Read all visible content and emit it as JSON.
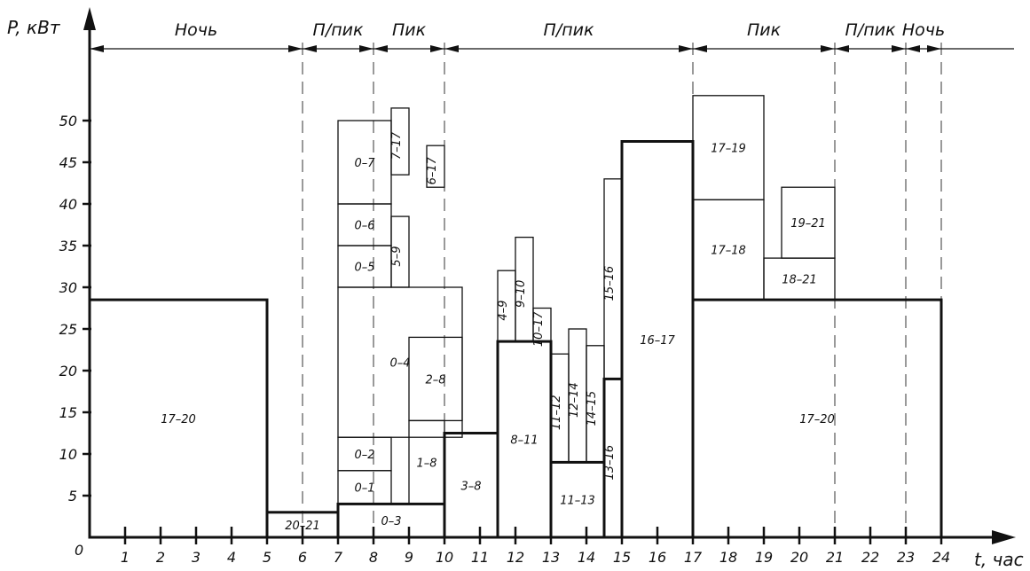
{
  "chart_data": {
    "type": "bar",
    "title": "",
    "xlabel": "t, час",
    "ylabel": "P, кВт",
    "origin_label": "0",
    "xlim": [
      0,
      24
    ],
    "ylim": [
      0,
      50
    ],
    "x_ticks": [
      "1",
      "2",
      "3",
      "4",
      "5",
      "6",
      "7",
      "8",
      "9",
      "10",
      "11",
      "12",
      "13",
      "14",
      "15",
      "16",
      "17",
      "18",
      "19",
      "20",
      "21",
      "22",
      "23",
      "24"
    ],
    "y_ticks": [
      "5",
      "10",
      "15",
      "20",
      "25",
      "30",
      "35",
      "40",
      "45",
      "50"
    ],
    "zones": [
      {
        "label": "Ночь",
        "from": 0,
        "to": 6
      },
      {
        "label": "П/пик",
        "from": 6,
        "to": 8
      },
      {
        "label": "Пик",
        "from": 8,
        "to": 10
      },
      {
        "label": "П/пик",
        "from": 10,
        "to": 17
      },
      {
        "label": "Пик",
        "from": 17,
        "to": 21
      },
      {
        "label": "П/пик",
        "from": 21,
        "to": 23
      },
      {
        "label": "Ночь",
        "from": 23,
        "to": 24
      }
    ],
    "zone_boundaries": [
      6,
      8,
      10,
      17,
      21,
      23,
      24
    ],
    "segments": [
      {
        "label": "17–20",
        "x0": 0,
        "x1": 5,
        "y0": 0,
        "y1": 28.5,
        "bold": true
      },
      {
        "label": "20–21",
        "x0": 5,
        "x1": 7,
        "y0": 0,
        "y1": 3,
        "bold": true
      },
      {
        "label": "0–3",
        "x0": 7,
        "x1": 10,
        "y0": 0,
        "y1": 4,
        "bold": true
      },
      {
        "label": "0–1",
        "x0": 7,
        "x1": 8.5,
        "y0": 4,
        "y1": 8,
        "bold": false
      },
      {
        "label": "0–2",
        "x0": 7,
        "x1": 8.5,
        "y0": 8,
        "y1": 12,
        "bold": false
      },
      {
        "label": "1–8",
        "x0": 9,
        "x1": 10,
        "y0": 4,
        "y1": 14,
        "bold": false
      },
      {
        "label": "2–8",
        "x0": 9,
        "x1": 10.5,
        "y0": 14,
        "y1": 24,
        "bold": false
      },
      {
        "label": "3–8",
        "x0": 10,
        "x1": 11.5,
        "y0": 0,
        "y1": 12.5,
        "bold": true
      },
      {
        "label": "0–4",
        "x0": 7,
        "x1": 10.5,
        "y0": 12,
        "y1": 30,
        "bold": false
      },
      {
        "label": "0–5",
        "x0": 7,
        "x1": 8.5,
        "y0": 30,
        "y1": 35,
        "bold": false
      },
      {
        "label": "0–6",
        "x0": 7,
        "x1": 8.5,
        "y0": 35,
        "y1": 40,
        "bold": false
      },
      {
        "label": "0–7",
        "x0": 7,
        "x1": 8.5,
        "y0": 40,
        "y1": 50,
        "bold": false
      },
      {
        "label": "5–9",
        "x0": 8.5,
        "x1": 9,
        "y0": 30,
        "y1": 38.5,
        "bold": false
      },
      {
        "label": "7–17",
        "x0": 8.5,
        "x1": 9,
        "y0": 43.5,
        "y1": 51.5,
        "bold": false
      },
      {
        "label": "6–17",
        "x0": 9.5,
        "x1": 10,
        "y0": 42,
        "y1": 47,
        "bold": false
      },
      {
        "label": "8–11",
        "x0": 11.5,
        "x1": 13,
        "y0": 0,
        "y1": 23.5,
        "bold": true
      },
      {
        "label": "4–9",
        "x0": 11.5,
        "x1": 12,
        "y0": 23.5,
        "y1": 32,
        "bold": false
      },
      {
        "label": "9–10",
        "x0": 12,
        "x1": 12.5,
        "y0": 23.5,
        "y1": 36,
        "bold": false
      },
      {
        "label": "10–17",
        "x0": 12.5,
        "x1": 13,
        "y0": 23.5,
        "y1": 27.5,
        "bold": false
      },
      {
        "label": "11–13",
        "x0": 13,
        "x1": 14.5,
        "y0": 0,
        "y1": 9,
        "bold": true
      },
      {
        "label": "11–12",
        "x0": 13,
        "x1": 13.5,
        "y0": 9,
        "y1": 22,
        "bold": false
      },
      {
        "label": "12–14",
        "x0": 13.5,
        "x1": 14,
        "y0": 9,
        "y1": 25,
        "bold": false
      },
      {
        "label": "14–15",
        "x0": 14,
        "x1": 14.5,
        "y0": 9,
        "y1": 23,
        "bold": false
      },
      {
        "label": "13–16",
        "x0": 14.5,
        "x1": 15,
        "y0": 0,
        "y1": 19,
        "bold": true
      },
      {
        "label": "15–16",
        "x0": 14.5,
        "x1": 15,
        "y0": 19,
        "y1": 43,
        "bold": false
      },
      {
        "label": "16–17",
        "x0": 15,
        "x1": 17,
        "y0": 0,
        "y1": 47.5,
        "bold": true
      },
      {
        "label": "17–20",
        "x0": 17,
        "x1": 24,
        "y0": 0,
        "y1": 28.5,
        "bold": true
      },
      {
        "label": "18–21",
        "x0": 19,
        "x1": 21,
        "y0": 28.5,
        "y1": 33.5,
        "bold": false
      },
      {
        "label": "17–18",
        "x0": 17,
        "x1": 19,
        "y0": 28.5,
        "y1": 40.5,
        "bold": false
      },
      {
        "label": "19–21",
        "x0": 19.5,
        "x1": 21,
        "y0": 33.5,
        "y1": 42,
        "bold": false
      },
      {
        "label": "17–19",
        "x0": 17,
        "x1": 19,
        "y0": 40.5,
        "y1": 53,
        "bold": false
      }
    ],
    "grid": false,
    "legend": "none"
  }
}
